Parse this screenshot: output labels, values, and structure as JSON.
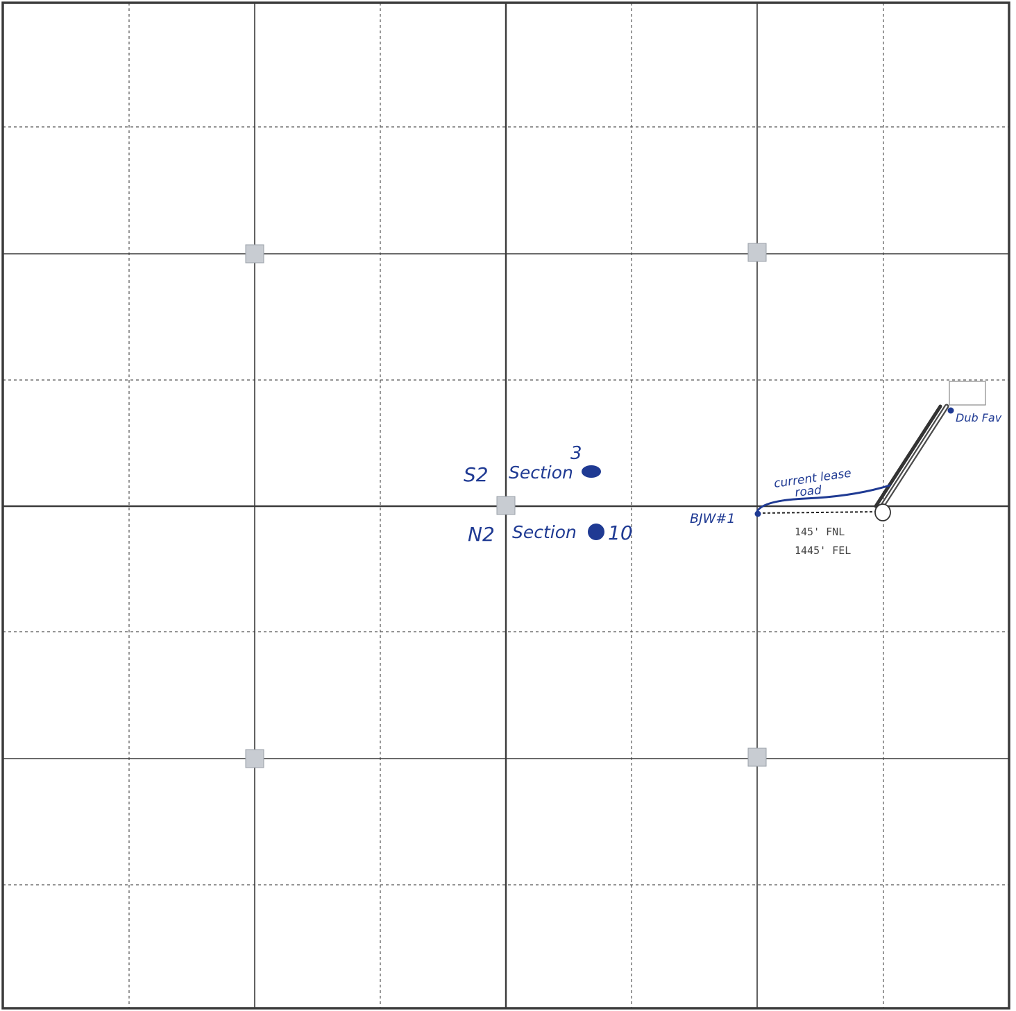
{
  "colors": {
    "grid_major": "#3a3a3a",
    "grid_minor": "#555555",
    "border": "#3a3a3a",
    "marker_fill": "#c8ccd2",
    "ink": "#1f3a93",
    "typed_text": "#444444"
  },
  "handwritten": {
    "upper_section_prefix": "S2",
    "upper_section_word": "Section",
    "upper_section_number": "3",
    "lower_section_prefix": "N2",
    "lower_section_word": "Section",
    "lower_section_number": "10",
    "road_label_line1": "current lease",
    "road_label_line2": "road",
    "well_label": "BJW#1",
    "facility_label": "Dub Fav"
  },
  "footage": {
    "fnl": "145' FNL",
    "fel": "1445' FEL"
  },
  "icons": {
    "corner_marker": "square-marker-icon",
    "well_location": "open-circle-icon",
    "ink_dot": "filled-dot-icon"
  }
}
